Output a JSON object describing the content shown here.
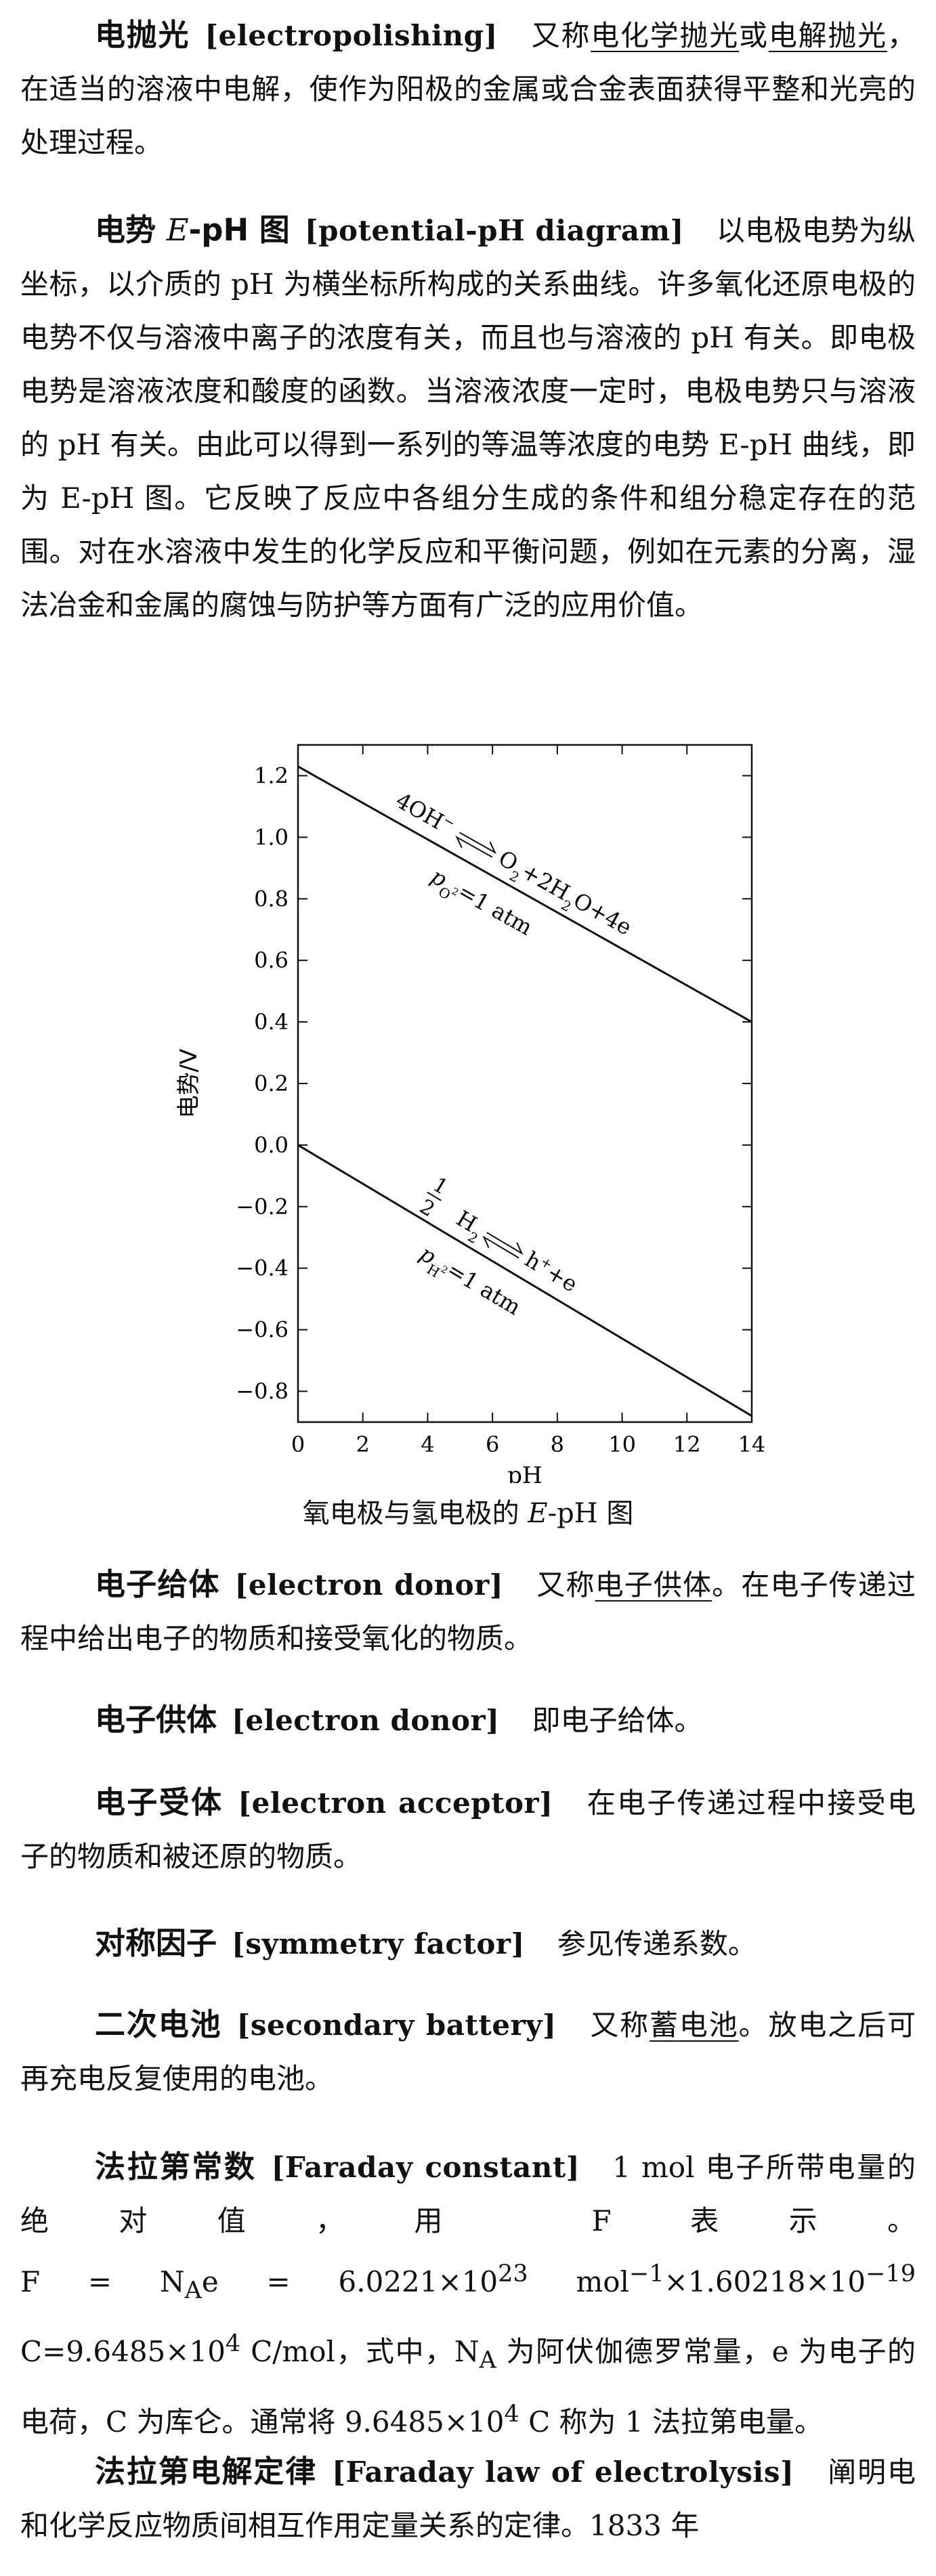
{
  "entries": {
    "electropolishing": {
      "term": "电抛光",
      "en": "[electropolishing]",
      "t1": "又称",
      "syn1": "电化学抛光",
      "t2": "或",
      "syn2": "电解抛光",
      "t3": "，在适当的溶液中电解，使作为阳极的金属或合金表面获得平整和光亮的处理过程。"
    },
    "potential_ph": {
      "term_pre": "电势 ",
      "term_italic": "E",
      "term_post": "-pH 图",
      "en": "[potential-pH diagram]",
      "text": "以电极电势为纵坐标，以介质的 pH 为横坐标所构成的关系曲线。许多氧化还原电极的电势不仅与溶液中离子的浓度有关，而且也与溶液的 pH 有关。即电极电势是溶液浓度和酸度的函数。当溶液浓度一定时，电极电势只与溶液的 pH 有关。由此可以得到一系列的等温等浓度的电势 E-pH 曲线，即为 E-pH 图。它反映了反应中各组分生成的条件和组分稳定存在的范围。对在水溶液中发生的化学反应和平衡问题，例如在元素的分离，湿法冶金和金属的腐蚀与防护等方面有广泛的应用价值。"
    },
    "electron_donor": {
      "term": "电子给体",
      "en": "[electron donor]",
      "t1": "又称",
      "syn": "电子供体",
      "t2": "。在电子传递过程中给出电子的物质和接受氧化的物质。"
    },
    "electron_donor2": {
      "term": "电子供体",
      "en": "[electron donor]",
      "text": "即电子给体。"
    },
    "electron_acceptor": {
      "term": "电子受体",
      "en": "[electron acceptor]",
      "text": "在电子传递过程中接受电子的物质和被还原的物质。"
    },
    "symmetry_factor": {
      "term": "对称因子",
      "en": "[symmetry factor]",
      "text": "参见传递系数。"
    },
    "secondary_battery": {
      "term": "二次电池",
      "en": "[secondary battery]",
      "t1": "又称",
      "syn": "蓄电池",
      "t2": "。放电之后可再充电反复使用的电池。"
    },
    "faraday_constant": {
      "term": "法拉第常数",
      "en": "[Faraday constant]",
      "t1": "1 mol 电子所带电量的绝对值，用 F 表示。",
      "formula1": "F = N",
      "sub_a": "A",
      "formula2": "e = 6.0221×10",
      "sup_23": "23",
      "formula3": " mol",
      "sup_m1": "−1",
      "formula4": "×1.60218×10",
      "sup_m19": "−19",
      "formula5": " C=9.6485×10",
      "sup_4": "4",
      "formula6": " C/mol，式中，N",
      "sub_a2": "A",
      "t2": " 为阿伏伽德罗常量，e 为电子的电荷，C 为库仑。通常将 9.6485×10",
      "sup_4b": "4",
      "t3": " C 称为 1 法拉第电量。"
    },
    "faraday_law": {
      "term": "法拉第电解定律",
      "en": "[Faraday law of electrolysis]",
      "text": "阐明电和化学反应物质间相互作用定量关系的定律。1833 年"
    }
  },
  "figure": {
    "caption_pre": "氧电极与氢电极的 ",
    "caption_italic": "E",
    "caption_post": "-pH 图"
  },
  "chart_data": {
    "type": "line",
    "xlabel": "pH",
    "ylabel": "电势/V",
    "xlim": [
      0,
      14
    ],
    "ylim": [
      -0.9,
      1.3
    ],
    "xticks": [
      "0",
      "2",
      "4",
      "6",
      "8",
      "10",
      "12",
      "14"
    ],
    "yticks": [
      "1.2",
      "1.0",
      "0.8",
      "0.6",
      "0.4",
      "0.2",
      "0.0",
      "−0.2",
      "−0.4",
      "−0.6",
      "−0.8"
    ],
    "series": [
      {
        "x": [
          0,
          14
        ],
        "y": [
          1.23,
          0.4
        ],
        "label_left": "4OH",
        "label_left_sup": "−",
        "label_right": "O",
        "label_right_sub": "2",
        "label_right_tail": "+2H",
        "label_right_sub2": "2",
        "label_right_tail2": "O+4e",
        "cond": "p",
        "cond_sub": "O",
        "cond_subsub": "2",
        "cond_tail": "=1 atm"
      },
      {
        "x": [
          0,
          14
        ],
        "y": [
          0.0,
          -0.88
        ],
        "frac_num": "1",
        "frac_den": "2",
        "label_left": "H",
        "label_left_sub": "2",
        "label_right": "h",
        "label_right_sup": "+",
        "label_right_tail": "+e",
        "cond": "p",
        "cond_sub": "H",
        "cond_subsub": "2",
        "cond_tail": "=1 atm"
      }
    ]
  }
}
